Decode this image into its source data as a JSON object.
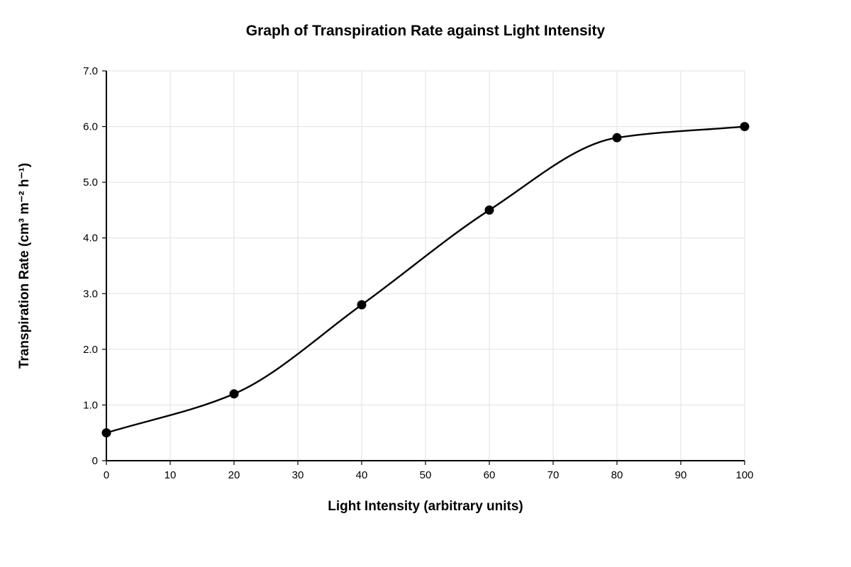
{
  "chart_data": {
    "type": "line",
    "title": "Graph of Transpiration Rate against Light Intensity",
    "xlabel": "Light Intensity (arbitrary units)",
    "ylabel": "Transpiration Rate (cm³ m⁻² h⁻¹)",
    "xlim": [
      0,
      100
    ],
    "ylim": [
      0,
      7
    ],
    "x_ticks": [
      0,
      10,
      20,
      30,
      40,
      50,
      60,
      70,
      80,
      90,
      100
    ],
    "x_tick_labels": [
      "0",
      "10",
      "20",
      "30",
      "40",
      "50",
      "60",
      "70",
      "80",
      "90",
      "100"
    ],
    "y_ticks": [
      0,
      1,
      2,
      3,
      4,
      5,
      6,
      7
    ],
    "y_tick_labels": [
      "0",
      "1.0",
      "2.0",
      "3.0",
      "4.0",
      "5.0",
      "6.0",
      "7.0"
    ],
    "grid": true,
    "smooth": true,
    "series": [
      {
        "x": [
          0,
          20,
          40,
          60,
          80,
          100
        ],
        "values": [
          0.5,
          1.2,
          2.8,
          4.5,
          5.8,
          6.0
        ],
        "color": "#000000",
        "marker": "filled-circle"
      }
    ]
  }
}
